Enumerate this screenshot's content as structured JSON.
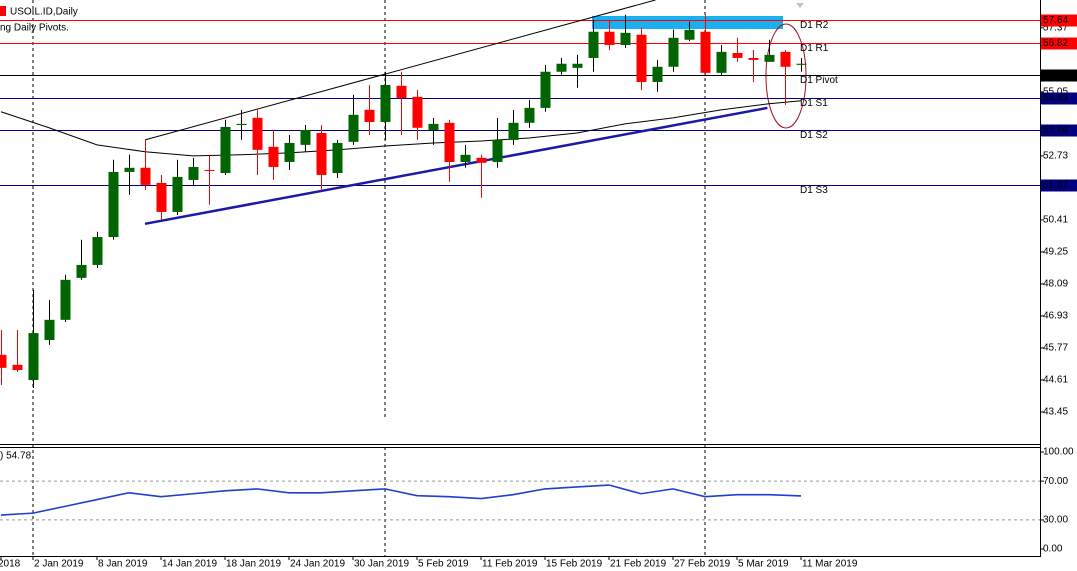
{
  "chart_data": [
    {
      "type": "candlestick",
      "title": "USOIL.ID,Daily",
      "subtitle": "ng Daily Pivots.",
      "categories": [
        "2018",
        null,
        "2 Jan 2019",
        null,
        null,
        null,
        "8 Jan 2019",
        null,
        null,
        null,
        "14 Jan 2019",
        null,
        null,
        null,
        "18 Jan 2019",
        null,
        null,
        null,
        "24 Jan 2019",
        null,
        null,
        null,
        "30 Jan 2019",
        null,
        null,
        null,
        "5 Feb 2019",
        null,
        null,
        null,
        "11 Feb 2019",
        null,
        null,
        null,
        "15 Feb 2019",
        null,
        null,
        null,
        "21 Feb 2019",
        null,
        null,
        null,
        "27 Feb 2019",
        null,
        null,
        null,
        "5 Mar 2019",
        null,
        null,
        null,
        "11 Mar 2019"
      ],
      "open": [
        45.52,
        45.16,
        44.61,
        46.06,
        46.79,
        48.31,
        48.78,
        49.79,
        52.15,
        52.3,
        51.75,
        50.7,
        51.86,
        52.22,
        52.11,
        53.85,
        54.11,
        53.06,
        52.51,
        53.13,
        53.56,
        52.11,
        53.24,
        54.4,
        53.96,
        55.27,
        54.87,
        53.67,
        53.93,
        52.51,
        52.66,
        52.51,
        53.31,
        53.93,
        54.47,
        55.78,
        55.92,
        56.28,
        57.23,
        56.75,
        57.12,
        55.41,
        55.96,
        56.94,
        57.23,
        55.74,
        56.46,
        56.28,
        56.14,
        56.5,
        56.03
      ],
      "high": [
        46.42,
        46.42,
        47.87,
        47.51,
        48.42,
        49.69,
        49.98,
        52.59,
        52.77,
        53.31,
        52.04,
        52.59,
        52.66,
        52.77,
        54.04,
        54.4,
        54.4,
        53.67,
        53.49,
        53.85,
        53.85,
        53.31,
        54.94,
        55.3,
        55.78,
        55.78,
        55.12,
        54.11,
        54.04,
        53.13,
        52.77,
        54.11,
        54.4,
        54.76,
        56.03,
        56.28,
        56.39,
        57.66,
        57.66,
        57.84,
        57.37,
        56.21,
        57.3,
        57.59,
        57.84,
        56.75,
        57.01,
        56.57,
        56.94,
        56.57,
        56.28
      ],
      "low": [
        44.43,
        44.9,
        44.32,
        45.88,
        46.71,
        48.24,
        48.67,
        49.69,
        51.32,
        51.5,
        50.41,
        50.59,
        51.68,
        50.96,
        52.04,
        53.31,
        52.04,
        51.86,
        52.22,
        52.88,
        51.5,
        51.93,
        53.13,
        53.49,
        53.31,
        53.49,
        53.31,
        53.13,
        51.79,
        52.3,
        51.21,
        52.3,
        53.13,
        53.75,
        54.33,
        55.67,
        55.2,
        55.78,
        56.57,
        56.64,
        55.12,
        55.05,
        55.78,
        56.89,
        55.67,
        55.67,
        56.14,
        55.41,
        56.14,
        54.58,
        55.78
      ],
      "close": [
        45.05,
        44.97,
        46.31,
        46.79,
        48.24,
        48.78,
        49.79,
        52.15,
        52.3,
        51.68,
        50.7,
        51.97,
        52.33,
        52.19,
        53.78,
        53.89,
        52.95,
        52.33,
        53.2,
        53.67,
        52.04,
        53.2,
        54.22,
        53.96,
        55.3,
        54.83,
        53.75,
        53.89,
        52.51,
        52.77,
        52.48,
        53.31,
        53.93,
        54.47,
        55.78,
        56.07,
        56.07,
        57.23,
        56.75,
        57.19,
        55.41,
        55.96,
        57.01,
        57.3,
        55.74,
        56.5,
        56.28,
        56.21,
        56.39,
        55.96,
        56.07
      ],
      "up_color": "#006400",
      "down_color": "#ff0000",
      "ylim": [
        42.29,
        58.38
      ],
      "yticks": [
        57.37,
        55.05,
        52.73,
        50.41,
        49.25,
        48.09,
        46.93,
        45.77,
        44.61,
        43.45
      ],
      "ma": {
        "x": [
          0,
          3,
          6,
          9,
          12,
          15,
          18,
          21,
          24,
          27,
          30,
          33,
          36,
          39,
          42,
          45,
          48,
          50
        ],
        "values": [
          54.33,
          53.75,
          53.13,
          52.88,
          52.73,
          52.77,
          52.84,
          52.95,
          53.09,
          53.2,
          53.27,
          53.38,
          53.56,
          53.89,
          54.11,
          54.4,
          54.62,
          54.73
        ],
        "color": "#000000"
      },
      "trendlines": [
        {
          "x": [
            9,
            40.9
          ],
          "values": [
            53.31,
            58.38
          ],
          "color": "#000000",
          "width": 1
        },
        {
          "x": [
            9,
            47.9
          ],
          "values": [
            50.27,
            54.47
          ],
          "color": "#1a1aa6",
          "width": 2.5
        }
      ],
      "pivots": [
        {
          "name": "D1 R2",
          "value": 57.64,
          "color": "#ff0000"
        },
        {
          "name": "D1 R1",
          "value": 56.82,
          "color": "#ff0000"
        },
        {
          "name": "D1 Pivot",
          "value": 55.65,
          "color": "#000000"
        },
        {
          "name": "D1 S1",
          "value": 54.83,
          "color": "#000080"
        },
        {
          "name": "D1 S2",
          "value": 53.66,
          "color": "#000080"
        },
        {
          "name": "D1 S3",
          "value": 51.67,
          "color": "#000080"
        }
      ]
    },
    {
      "type": "line",
      "title": ") 54.78",
      "x": [
        0,
        2,
        4,
        6,
        8,
        10,
        12,
        14,
        16,
        18,
        20,
        22,
        24,
        26,
        28,
        30,
        32,
        34,
        36,
        38,
        40,
        42,
        44,
        46,
        48,
        50
      ],
      "values": [
        35,
        37,
        44,
        51,
        58,
        54,
        57,
        60,
        62,
        58,
        58,
        60,
        62,
        55,
        54,
        52,
        56,
        62,
        64,
        66,
        57,
        62,
        54,
        56,
        56,
        54.78
      ],
      "color": "#1f3fcf",
      "ylim": [
        -7.2,
        105.2
      ],
      "yticks": [
        {
          "value": 100,
          "label": "100.00"
        },
        {
          "value": 70,
          "label": "70.00"
        },
        {
          "value": 30,
          "label": "30.00"
        },
        {
          "value": 0,
          "label": "0.00"
        }
      ],
      "levels": [
        70,
        30
      ]
    }
  ]
}
